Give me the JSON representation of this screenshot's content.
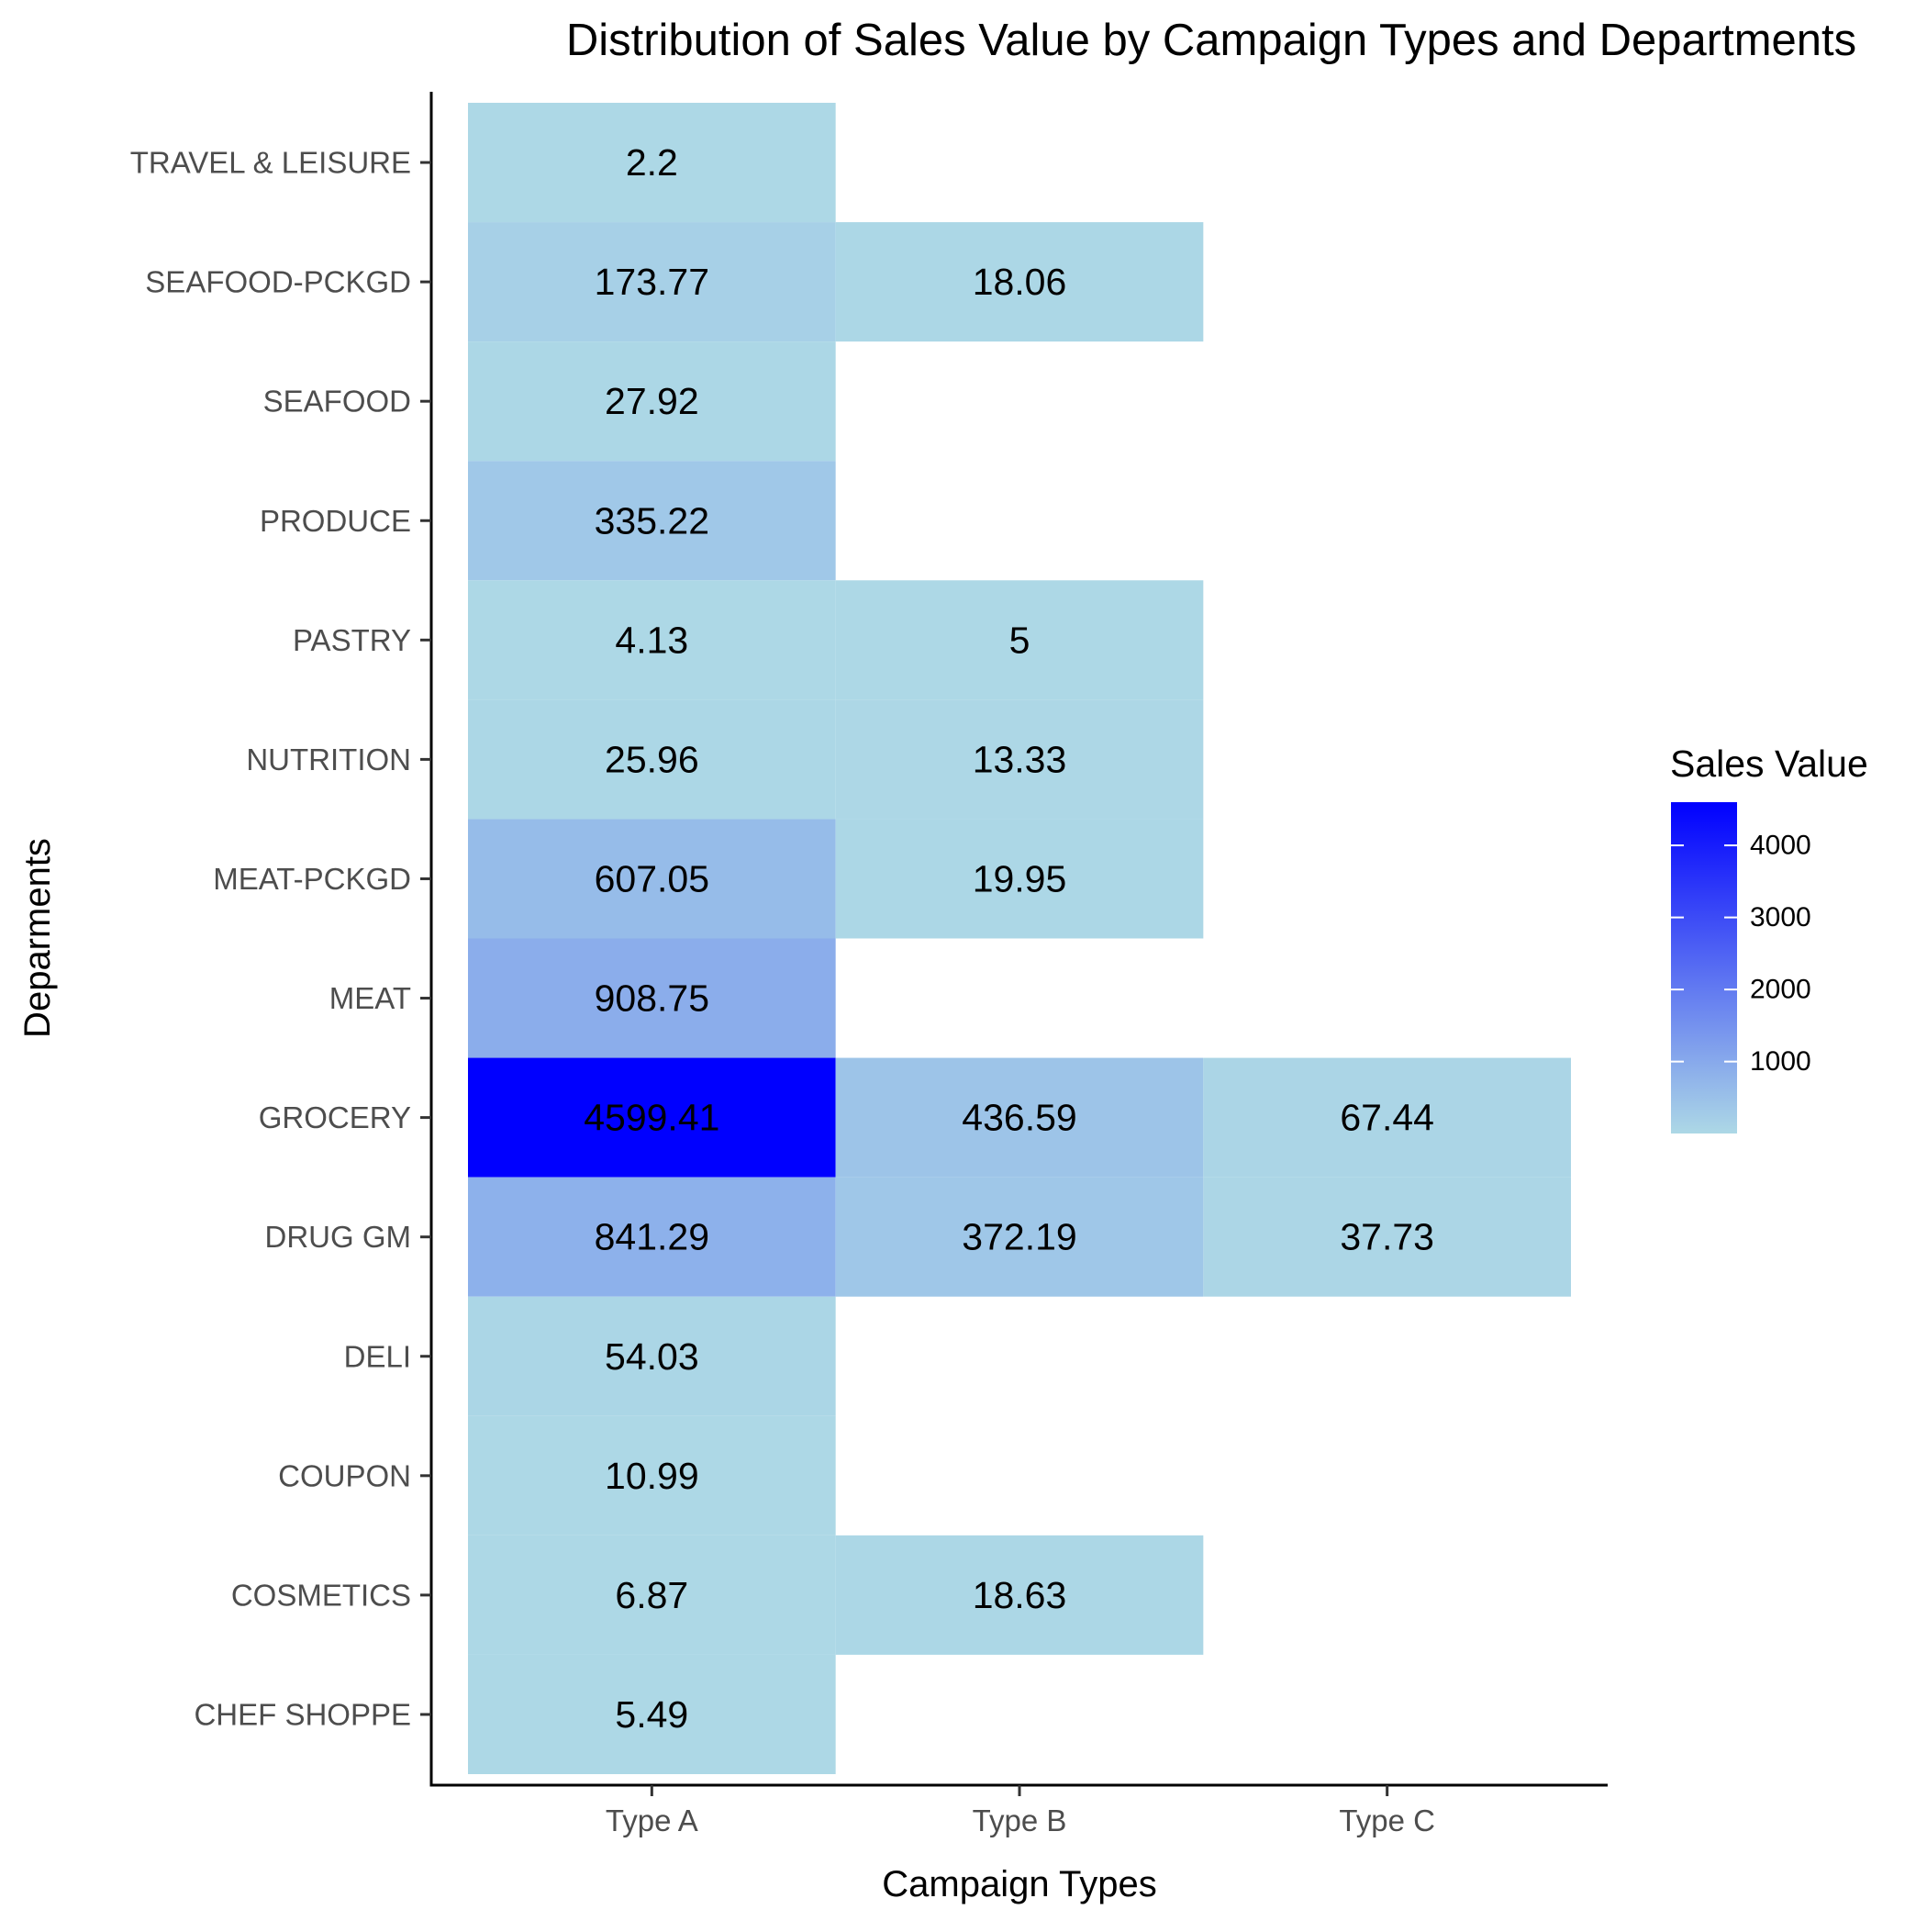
{
  "chart_data": {
    "type": "heatmap",
    "title": "Distribution of Sales Value by Campaign Types and Departments",
    "xlabel": "Campaign Types",
    "ylabel": "Deparments",
    "x_categories": [
      "Type A",
      "Type B",
      "Type C"
    ],
    "y_categories": [
      "TRAVEL & LEISURE",
      "SEAFOOD-PCKGD",
      "SEAFOOD",
      "PRODUCE",
      "PASTRY",
      "NUTRITION",
      "MEAT-PCKGD",
      "MEAT",
      "GROCERY",
      "DRUG GM",
      "DELI",
      "COUPON",
      "COSMETICS",
      "CHEF SHOPPE"
    ],
    "cells": [
      {
        "x": "Type A",
        "y": "TRAVEL & LEISURE",
        "value": 2.2,
        "label": "2.2"
      },
      {
        "x": "Type A",
        "y": "SEAFOOD-PCKGD",
        "value": 173.77,
        "label": "173.77"
      },
      {
        "x": "Type B",
        "y": "SEAFOOD-PCKGD",
        "value": 18.06,
        "label": "18.06"
      },
      {
        "x": "Type A",
        "y": "SEAFOOD",
        "value": 27.92,
        "label": "27.92"
      },
      {
        "x": "Type A",
        "y": "PRODUCE",
        "value": 335.22,
        "label": "335.22"
      },
      {
        "x": "Type A",
        "y": "PASTRY",
        "value": 4.13,
        "label": "4.13"
      },
      {
        "x": "Type B",
        "y": "PASTRY",
        "value": 5,
        "label": "5"
      },
      {
        "x": "Type A",
        "y": "NUTRITION",
        "value": 25.96,
        "label": "25.96"
      },
      {
        "x": "Type B",
        "y": "NUTRITION",
        "value": 13.33,
        "label": "13.33"
      },
      {
        "x": "Type A",
        "y": "MEAT-PCKGD",
        "value": 607.05,
        "label": "607.05"
      },
      {
        "x": "Type B",
        "y": "MEAT-PCKGD",
        "value": 19.95,
        "label": "19.95"
      },
      {
        "x": "Type A",
        "y": "MEAT",
        "value": 908.75,
        "label": "908.75"
      },
      {
        "x": "Type A",
        "y": "GROCERY",
        "value": 4599.41,
        "label": "4599.41"
      },
      {
        "x": "Type B",
        "y": "GROCERY",
        "value": 436.59,
        "label": "436.59"
      },
      {
        "x": "Type C",
        "y": "GROCERY",
        "value": 67.44,
        "label": "67.44"
      },
      {
        "x": "Type A",
        "y": "DRUG GM",
        "value": 841.29,
        "label": "841.29"
      },
      {
        "x": "Type B",
        "y": "DRUG GM",
        "value": 372.19,
        "label": "372.19"
      },
      {
        "x": "Type C",
        "y": "DRUG GM",
        "value": 37.73,
        "label": "37.73"
      },
      {
        "x": "Type A",
        "y": "DELI",
        "value": 54.03,
        "label": "54.03"
      },
      {
        "x": "Type A",
        "y": "COUPON",
        "value": 10.99,
        "label": "10.99"
      },
      {
        "x": "Type A",
        "y": "COSMETICS",
        "value": 6.87,
        "label": "6.87"
      },
      {
        "x": "Type B",
        "y": "COSMETICS",
        "value": 18.63,
        "label": "18.63"
      },
      {
        "x": "Type A",
        "y": "CHEF SHOPPE",
        "value": 5.49,
        "label": "5.49"
      }
    ],
    "color_scale": {
      "low": "#add8e6",
      "high": "#0000ff",
      "min": 2.2,
      "max": 4599.41
    },
    "legend": {
      "title": "Sales Value",
      "ticks": [
        1000,
        2000,
        3000,
        4000
      ],
      "tick_labels": [
        "1000",
        "2000",
        "3000",
        "4000"
      ],
      "position": "right"
    },
    "grid": false
  }
}
